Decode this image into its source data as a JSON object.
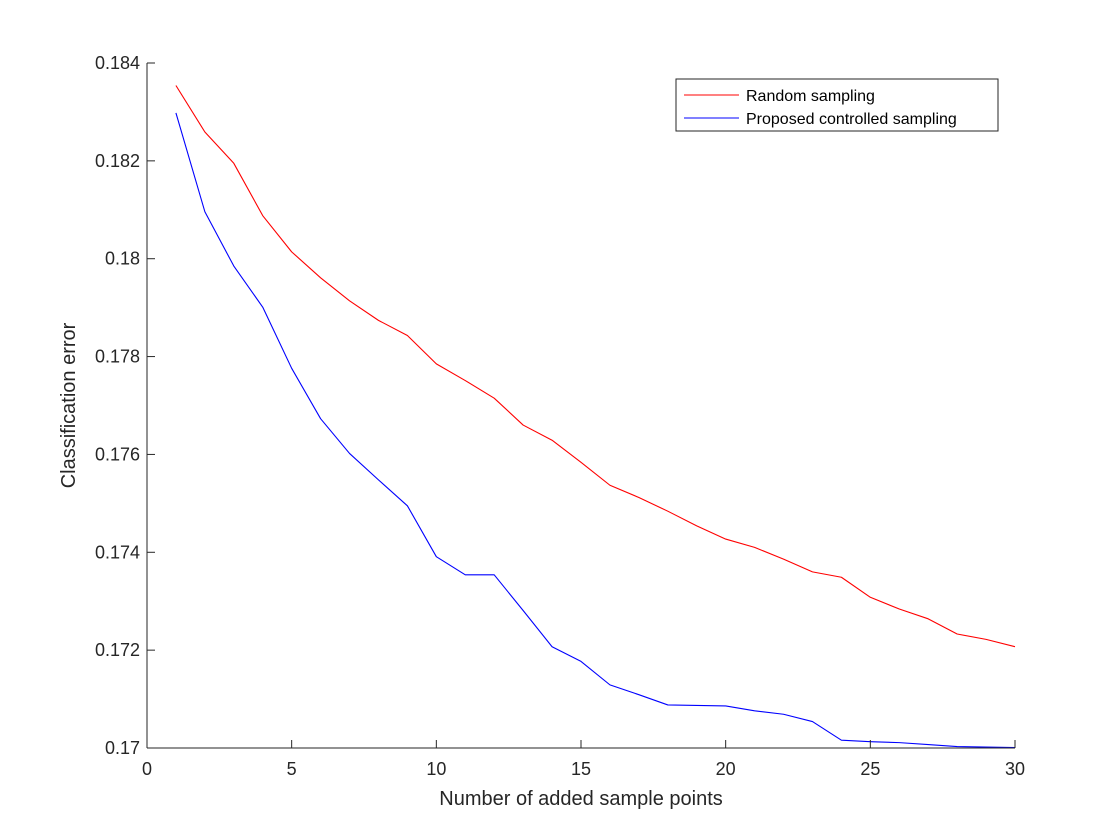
{
  "chart_data": {
    "type": "line",
    "title": "",
    "xlabel": "Number of added sample points",
    "ylabel": "Classification error",
    "xlim": [
      0,
      30
    ],
    "ylim": [
      0.17,
      0.184
    ],
    "x_ticks": [
      0,
      5,
      10,
      15,
      20,
      25,
      30
    ],
    "x_tick_labels": [
      "0",
      "5",
      "10",
      "15",
      "20",
      "25",
      "30"
    ],
    "y_ticks": [
      0.17,
      0.172,
      0.174,
      0.176,
      0.178,
      0.18,
      0.182,
      0.184
    ],
    "y_tick_labels": [
      "0.17",
      "0.172",
      "0.174",
      "0.176",
      "0.178",
      "0.18",
      "0.182",
      "0.184"
    ],
    "grid": false,
    "legend_position": "top-right",
    "x": [
      1,
      2,
      3,
      4,
      5,
      6,
      7,
      8,
      9,
      10,
      11,
      12,
      13,
      14,
      15,
      16,
      17,
      18,
      19,
      20,
      21,
      22,
      23,
      24,
      25,
      26,
      27,
      28,
      29,
      30
    ],
    "series": [
      {
        "name": "Random sampling",
        "color": "#ff0000",
        "values": [
          0.18354,
          0.18259,
          0.18195,
          0.18088,
          0.18014,
          0.17961,
          0.17914,
          0.17874,
          0.17843,
          0.17785,
          0.17751,
          0.17715,
          0.1766,
          0.17629,
          0.17584,
          0.17537,
          0.17512,
          0.17484,
          0.17454,
          0.17427,
          0.1741,
          0.17386,
          0.1736,
          0.17349,
          0.17308,
          0.17284,
          0.17264,
          0.17233,
          0.17222,
          0.17207
        ]
      },
      {
        "name": "Proposed controlled sampling",
        "color": "#0000ff",
        "values": [
          0.18298,
          0.18096,
          0.17985,
          0.17901,
          0.17776,
          0.17673,
          0.17602,
          0.17548,
          0.17495,
          0.17391,
          0.17354,
          0.17354,
          0.17281,
          0.17207,
          0.17177,
          0.17129,
          0.17109,
          0.17088,
          0.17087,
          0.17086,
          0.17076,
          0.17069,
          0.17054,
          0.17016,
          0.17013,
          0.17011,
          0.17007,
          0.17003,
          0.17002,
          0.17001
        ]
      }
    ]
  }
}
